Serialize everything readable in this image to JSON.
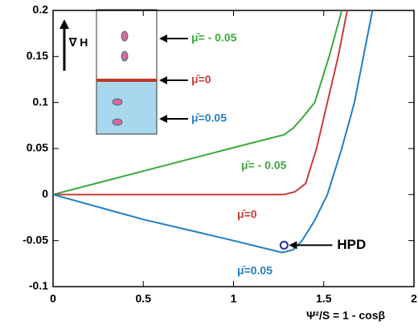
{
  "chart_data": {
    "type": "line",
    "xlabel": "Ψ²/S = 1 - cosβ",
    "xlim": [
      0,
      2
    ],
    "ylim": [
      -0.1,
      0.2
    ],
    "xticks": [
      0,
      0.5,
      1,
      1.5,
      2
    ],
    "yticks": [
      -0.1,
      -0.05,
      0,
      0.05,
      0.1,
      0.15,
      0.2
    ],
    "grid": false,
    "series": [
      {
        "name": "μ̄= - 0.05",
        "color": "#3aa83a",
        "x": [
          0,
          0.5,
          1,
          1.28,
          1.33,
          1.38,
          1.45,
          1.53,
          1.6
        ],
        "values": [
          0,
          0.0255,
          0.051,
          0.065,
          0.072,
          0.083,
          0.1,
          0.15,
          0.2
        ]
      },
      {
        "name": "μ̄=0",
        "color": "#cc3a3a",
        "x": [
          0,
          0.5,
          1,
          1.28,
          1.34,
          1.4,
          1.46,
          1.52,
          1.58,
          1.63
        ],
        "values": [
          0,
          0,
          0,
          0,
          0.003,
          0.012,
          0.05,
          0.1,
          0.15,
          0.2
        ]
      },
      {
        "name": "μ̄=0.05",
        "color": "#1f7fc4",
        "x": [
          0,
          0.5,
          1,
          1.27,
          1.33,
          1.38,
          1.45,
          1.52,
          1.6,
          1.67,
          1.72,
          1.77
        ],
        "values": [
          0,
          -0.027,
          -0.05,
          -0.063,
          -0.06,
          -0.05,
          -0.028,
          0,
          0.05,
          0.1,
          0.15,
          0.2
        ]
      }
    ],
    "annotations": [
      {
        "text": "HPD",
        "x": 1.28,
        "y": -0.055
      }
    ],
    "inset": {
      "gradient_label": "∇ H"
    }
  }
}
